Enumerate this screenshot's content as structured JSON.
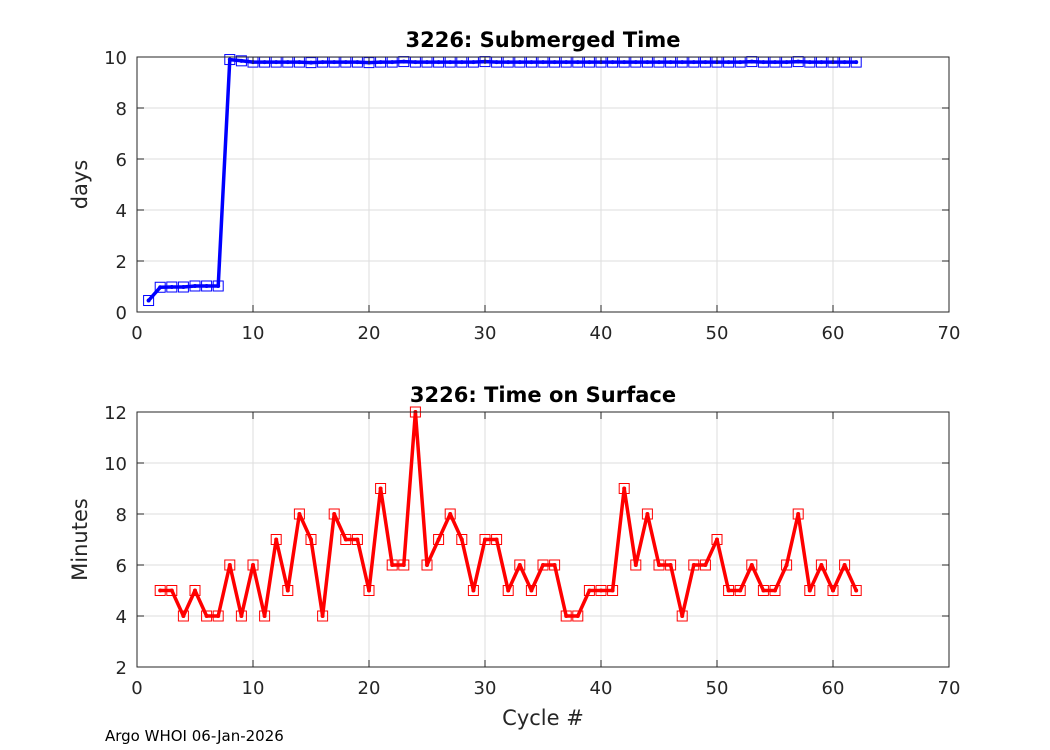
{
  "footer": "Argo WHOI 06-Jan-2026",
  "chart_data": [
    {
      "type": "line",
      "title": "3226: Submerged Time",
      "xlabel": "",
      "ylabel": "days",
      "xlim": [
        0,
        70
      ],
      "ylim": [
        0,
        10
      ],
      "xticks": [
        "0",
        "10",
        "20",
        "30",
        "40",
        "50",
        "60",
        "70"
      ],
      "yticks": [
        "0",
        "2",
        "4",
        "6",
        "8",
        "10"
      ],
      "grid": true,
      "color": "#0000ff",
      "marker": "square",
      "series": [
        {
          "name": "Submerged Time",
          "x": [
            1,
            2,
            3,
            4,
            5,
            6,
            7,
            8,
            9,
            10,
            11,
            12,
            13,
            14,
            15,
            16,
            17,
            18,
            19,
            20,
            21,
            22,
            23,
            24,
            25,
            26,
            27,
            28,
            29,
            30,
            31,
            32,
            33,
            34,
            35,
            36,
            37,
            38,
            39,
            40,
            41,
            42,
            43,
            44,
            45,
            46,
            47,
            48,
            49,
            50,
            51,
            52,
            53,
            54,
            55,
            56,
            57,
            58,
            59,
            60,
            61,
            62
          ],
          "y": [
            0.45,
            0.97,
            0.98,
            0.98,
            1.02,
            1.02,
            1.02,
            9.9,
            9.85,
            9.8,
            9.8,
            9.8,
            9.8,
            9.8,
            9.78,
            9.8,
            9.8,
            9.8,
            9.8,
            9.78,
            9.8,
            9.8,
            9.82,
            9.8,
            9.8,
            9.8,
            9.8,
            9.8,
            9.8,
            9.82,
            9.8,
            9.8,
            9.8,
            9.8,
            9.8,
            9.8,
            9.8,
            9.8,
            9.8,
            9.8,
            9.8,
            9.8,
            9.8,
            9.8,
            9.8,
            9.8,
            9.8,
            9.8,
            9.8,
            9.8,
            9.8,
            9.8,
            9.82,
            9.8,
            9.8,
            9.8,
            9.82,
            9.8,
            9.8,
            9.8,
            9.8,
            9.8
          ]
        }
      ]
    },
    {
      "type": "line",
      "title": "3226: Time on Surface",
      "xlabel": "Cycle #",
      "ylabel": "Minutes",
      "xlim": [
        0,
        70
      ],
      "ylim": [
        2,
        12
      ],
      "xticks": [
        "0",
        "10",
        "20",
        "30",
        "40",
        "50",
        "60",
        "70"
      ],
      "yticks": [
        "2",
        "4",
        "6",
        "8",
        "10",
        "12"
      ],
      "grid": true,
      "color": "#ff0000",
      "marker": "square",
      "series": [
        {
          "name": "Time on Surface",
          "x": [
            2,
            3,
            4,
            5,
            6,
            7,
            8,
            9,
            10,
            11,
            12,
            13,
            14,
            15,
            16,
            17,
            18,
            19,
            20,
            21,
            22,
            23,
            24,
            25,
            26,
            27,
            28,
            29,
            30,
            31,
            32,
            33,
            34,
            35,
            36,
            37,
            38,
            39,
            40,
            41,
            42,
            43,
            44,
            45,
            46,
            47,
            48,
            49,
            50,
            51,
            52,
            53,
            54,
            55,
            56,
            57,
            58,
            59,
            60,
            61,
            62
          ],
          "y": [
            5,
            5,
            4,
            5,
            4,
            4,
            6,
            4,
            6,
            4,
            7,
            5,
            8,
            7,
            4,
            8,
            7,
            7,
            5,
            9,
            6,
            6,
            12,
            6,
            7,
            8,
            7,
            5,
            7,
            7,
            5,
            6,
            5,
            6,
            6,
            4,
            4,
            5,
            5,
            5,
            9,
            6,
            8,
            6,
            6,
            4,
            6,
            6,
            7,
            5,
            5,
            6,
            5,
            5,
            6,
            8,
            5,
            6,
            5,
            6,
            5
          ]
        }
      ]
    }
  ]
}
